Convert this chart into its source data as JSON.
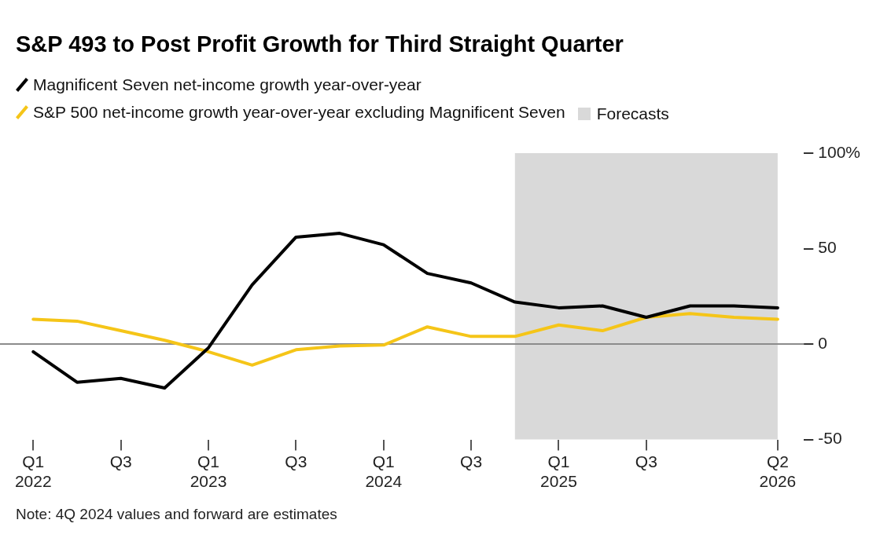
{
  "chart_data": {
    "type": "line",
    "title": "S&P 493 to Post Profit Growth for Third Straight Quarter",
    "categories": [
      "Q1 2022",
      null,
      "Q3",
      null,
      "Q1 2023",
      null,
      "Q3",
      null,
      "Q1 2024",
      null,
      "Q3",
      null,
      "Q1 2025",
      null,
      "Q3",
      null,
      null,
      "Q2 2026"
    ],
    "series": [
      {
        "name": "Magnificent Seven net-income growth year-over-year",
        "color": "#000000",
        "values": [
          -4,
          -20,
          -18,
          -23,
          -2,
          31,
          56,
          58,
          52,
          37,
          32,
          22,
          19,
          20,
          14,
          20,
          20,
          19
        ]
      },
      {
        "name": "S&P 500 net-income growth year-over-year excluding Magnificent Seven",
        "color": "#f5c518",
        "values": [
          13,
          12,
          7,
          2,
          -4,
          -11,
          -3,
          -1,
          -0.5,
          9,
          4,
          4,
          10,
          7,
          14,
          16,
          14,
          13
        ]
      }
    ],
    "ylim": [
      -50,
      100
    ],
    "yticks": [
      -50,
      0,
      50,
      {
        "value": 100,
        "label": "100%"
      }
    ],
    "ref_lines": [
      {
        "axis": "y",
        "value": 0,
        "color": "#8c8c8c"
      }
    ],
    "annotations": [
      "Forecasts",
      "Note: 4Q 2024 values and forward are estimates"
    ],
    "legend": "top left",
    "grid": false,
    "marker": "none",
    "line_style": "solid"
  }
}
